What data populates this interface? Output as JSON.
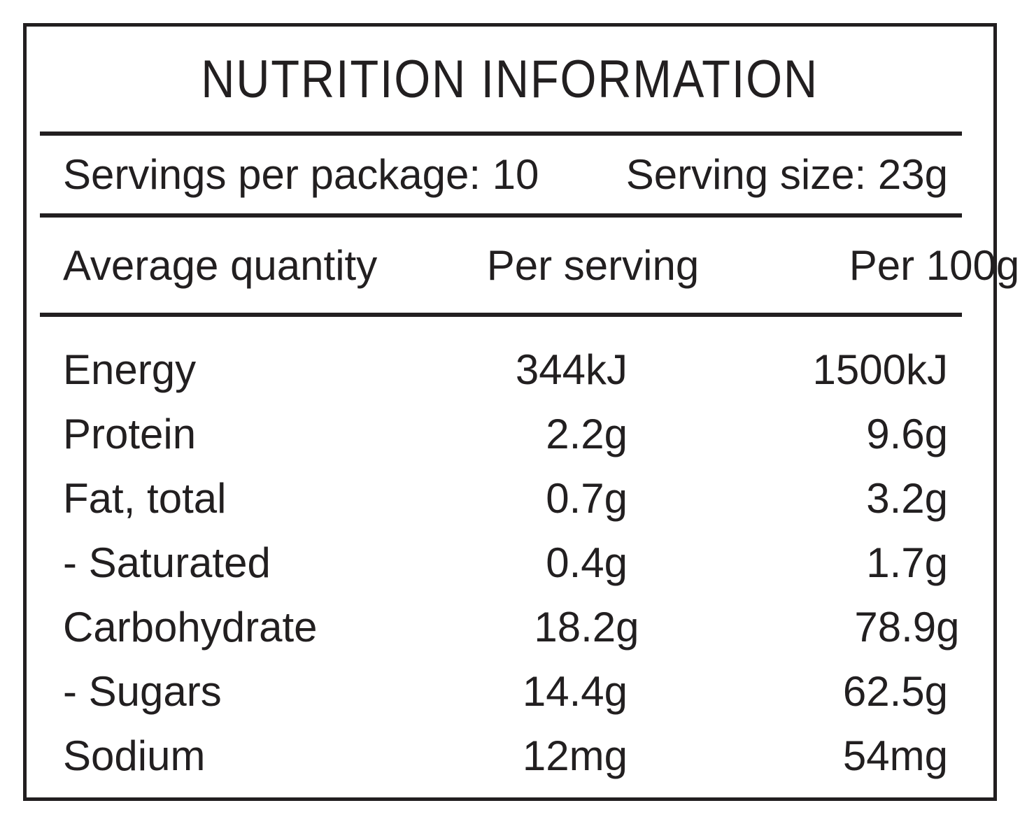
{
  "title": "NUTRITION INFORMATION",
  "servings": {
    "per_package": "Servings per package: 10",
    "serving_size": "Serving size: 23g"
  },
  "table": {
    "headers": [
      "Average quantity",
      "Per serving",
      "Per 100g"
    ],
    "rows": [
      {
        "nutrient": "Energy",
        "per_serving": "344kJ",
        "per_100g": "1500kJ"
      },
      {
        "nutrient": "Protein",
        "per_serving": "2.2g",
        "per_100g": "9.6g"
      },
      {
        "nutrient": "Fat, total",
        "per_serving": "0.7g",
        "per_100g": "3.2g"
      },
      {
        "nutrient": "- Saturated",
        "per_serving": "0.4g",
        "per_100g": "1.7g"
      },
      {
        "nutrient": "Carbohydrate",
        "per_serving": "18.2g",
        "per_100g": "78.9g"
      },
      {
        "nutrient": "- Sugars",
        "per_serving": "14.4g",
        "per_100g": "62.5g"
      },
      {
        "nutrient": "Sodium",
        "per_serving": "12mg",
        "per_100g": "54mg"
      }
    ]
  },
  "colors": {
    "text": "#221f20",
    "border": "#221f20",
    "background": "#ffffff"
  }
}
